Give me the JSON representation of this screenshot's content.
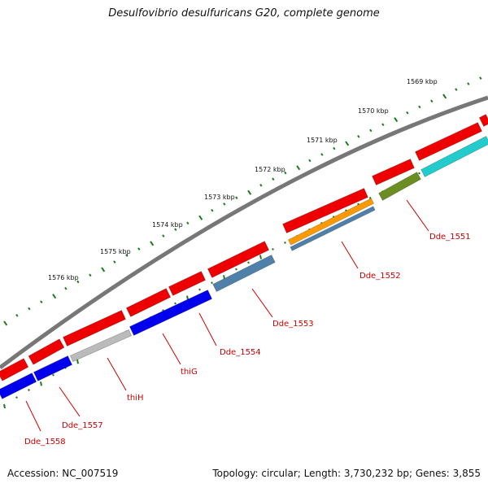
{
  "title": "Desulfovibrio desulfuricans G20, complete genome",
  "footer": {
    "accession": "Accession: NC_007519",
    "summary": "Topology: circular; Length: 3,730,232 bp; Genes: 3,855"
  },
  "scale_labels": [
    "1569 kbp",
    "1570 kbp",
    "1571 kbp",
    "1572 kbp",
    "1573 kbp",
    "1574 kbp",
    "1575 kbp",
    "1576 kbp"
  ],
  "gene_labels": [
    "Dde_1551",
    "Dde_1552",
    "Dde_1553",
    "Dde_1554",
    "thiG",
    "thiH",
    "Dde_1557",
    "Dde_1558"
  ],
  "colors": {
    "backbone": "#777777",
    "forward": "#ee0000",
    "reverse_blue": "#0000ee",
    "steel": "#4f7fab",
    "orange": "#ff9900",
    "olive": "#6b8e23",
    "cyan": "#22cccc",
    "light_gray": "#bbbbbb",
    "tick": "#1e7a1e",
    "label": "#cc0000"
  }
}
